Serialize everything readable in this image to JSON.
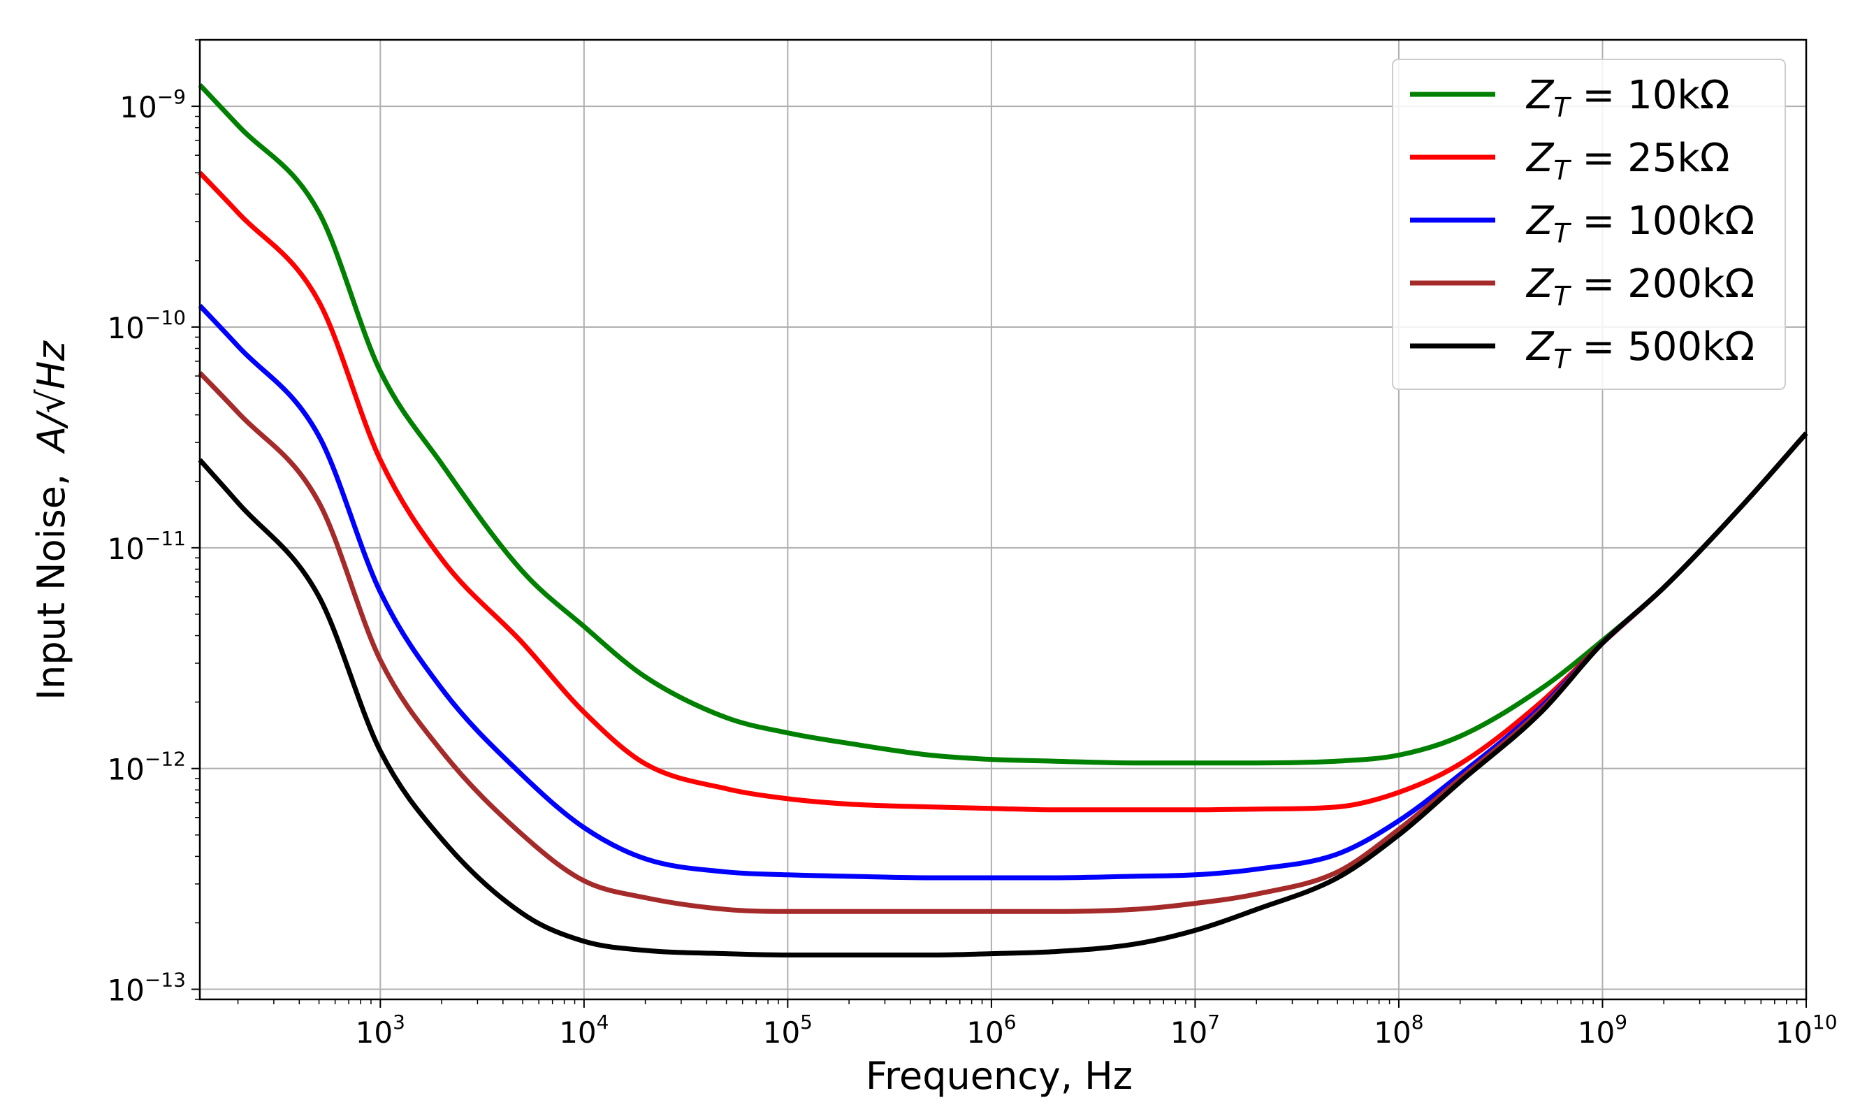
{
  "chart_data": {
    "type": "line",
    "title": "",
    "xlabel": "Frequency, Hz",
    "ylabel_prefix": "Input Noise,",
    "ylabel_unit": "A/√Hz",
    "xscale": "log",
    "yscale": "log",
    "xlim": [
      130,
      10000000000
    ],
    "ylim": [
      9e-14,
      2e-09
    ],
    "grid": true,
    "legend_position": "top-right",
    "x_ticks": [
      {
        "value": 1000,
        "base": "10",
        "exp": "3"
      },
      {
        "value": 10000,
        "base": "10",
        "exp": "4"
      },
      {
        "value": 100000,
        "base": "10",
        "exp": "5"
      },
      {
        "value": 1000000,
        "base": "10",
        "exp": "6"
      },
      {
        "value": 10000000,
        "base": "10",
        "exp": "7"
      },
      {
        "value": 100000000,
        "base": "10",
        "exp": "8"
      },
      {
        "value": 1000000000,
        "base": "10",
        "exp": "9"
      },
      {
        "value": 10000000000,
        "base": "10",
        "exp": "10"
      }
    ],
    "y_ticks": [
      {
        "value": 1e-09,
        "base": "10",
        "exp": "−9"
      },
      {
        "value": 1e-10,
        "base": "10",
        "exp": "−10"
      },
      {
        "value": 1e-11,
        "base": "10",
        "exp": "−11"
      },
      {
        "value": 1e-12,
        "base": "10",
        "exp": "−12"
      },
      {
        "value": 1e-13,
        "base": "10",
        "exp": "−13"
      }
    ],
    "x": [
      130,
      200,
      500,
      1000,
      2000,
      5000,
      10000,
      20000,
      50000,
      100000,
      200000,
      500000,
      1000000,
      2000000,
      5000000,
      10000000,
      20000000,
      50000000,
      100000000,
      200000000,
      500000000,
      1000000000,
      2000000000,
      5000000000,
      10000000000
    ],
    "series": [
      {
        "name": "Z_T = 10kΩ",
        "legend_main": "Z",
        "legend_sub": "T",
        "legend_rest": " = 10kΩ",
        "color": "#008000",
        "values": [
          1.25e-09,
          8.2e-10,
          3.3e-10,
          6.3e-11,
          2.4e-11,
          7.8e-12,
          4.4e-12,
          2.6e-12,
          1.7e-12,
          1.45e-12,
          1.3e-12,
          1.15e-12,
          1.1e-12,
          1.08e-12,
          1.06e-12,
          1.06e-12,
          1.06e-12,
          1.08e-12,
          1.15e-12,
          1.4e-12,
          2.3e-12,
          3.8e-12,
          6.6e-12,
          1.6e-11,
          3.3e-11
        ]
      },
      {
        "name": "Z_T = 25kΩ",
        "legend_main": "Z",
        "legend_sub": "T",
        "legend_rest": " = 25kΩ",
        "color": "#ff0000",
        "values": [
          5e-10,
          3.3e-10,
          1.3e-10,
          2.5e-11,
          8.9e-12,
          3.7e-12,
          1.8e-12,
          1.05e-12,
          8.1e-13,
          7.3e-13,
          6.9e-13,
          6.7e-13,
          6.6e-13,
          6.5e-13,
          6.5e-13,
          6.5e-13,
          6.55e-13,
          6.7e-13,
          7.8e-13,
          1.05e-12,
          2e-12,
          3.7e-12,
          6.6e-12,
          1.6e-11,
          3.3e-11
        ]
      },
      {
        "name": "Z_T = 100kΩ",
        "legend_main": "Z",
        "legend_sub": "T",
        "legend_rest": " = 100kΩ",
        "color": "#0000ff",
        "values": [
          1.25e-10,
          8.2e-11,
          3.2e-11,
          6.3e-12,
          2.3e-12,
          9.3e-13,
          5.4e-13,
          3.9e-13,
          3.4e-13,
          3.3e-13,
          3.25e-13,
          3.2e-13,
          3.2e-13,
          3.2e-13,
          3.25e-13,
          3.3e-13,
          3.5e-13,
          4.1e-13,
          5.8e-13,
          9.4e-13,
          1.9e-12,
          3.7e-12,
          6.6e-12,
          1.6e-11,
          3.3e-11
        ]
      },
      {
        "name": "Z_T = 200kΩ",
        "legend_main": "Z",
        "legend_sub": "T",
        "legend_rest": " = 200kΩ",
        "color": "#a52a2a",
        "values": [
          6.2e-11,
          4.1e-11,
          1.6e-11,
          3.1e-12,
          1.2e-12,
          5e-13,
          3.1e-13,
          2.6e-13,
          2.3e-13,
          2.25e-13,
          2.25e-13,
          2.25e-13,
          2.25e-13,
          2.25e-13,
          2.3e-13,
          2.45e-13,
          2.7e-13,
          3.4e-13,
          5.3e-13,
          9e-13,
          1.85e-12,
          3.7e-12,
          6.6e-12,
          1.6e-11,
          3.3e-11
        ]
      },
      {
        "name": "Z_T = 500kΩ",
        "legend_main": "Z",
        "legend_sub": "T",
        "legend_rest": " = 500kΩ",
        "color": "#000000",
        "values": [
          2.5e-11,
          1.6e-11,
          6e-12,
          1.2e-12,
          4.8e-13,
          2.2e-13,
          1.65e-13,
          1.5e-13,
          1.45e-13,
          1.43e-13,
          1.43e-13,
          1.43e-13,
          1.45e-13,
          1.48e-13,
          1.6e-13,
          1.85e-13,
          2.3e-13,
          3.2e-13,
          5e-13,
          8.7e-13,
          1.8e-12,
          3.7e-12,
          6.6e-12,
          1.6e-11,
          3.3e-11
        ]
      }
    ]
  }
}
